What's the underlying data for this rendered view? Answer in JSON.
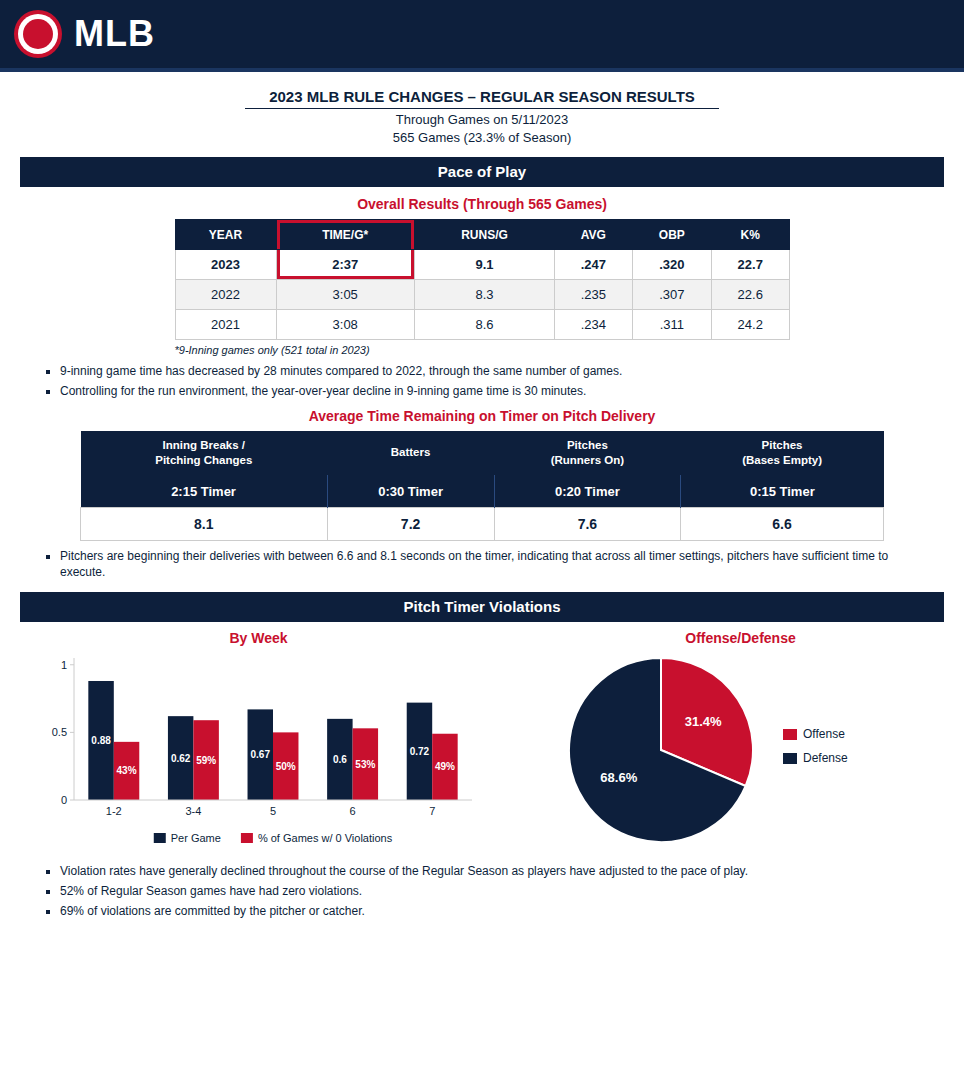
{
  "header": "MLB",
  "title": "2023 MLB RULE CHANGES – REGULAR SEASON RESULTS",
  "subtitle": [
    "Through Games on 5/11/2023",
    "565 Games (23.3% of Season)"
  ],
  "sections": [
    "Pace of Play",
    "Pitch Timer Violations"
  ],
  "tables": [
    {
      "title": "Overall Results (Through 565 Games)",
      "headers": [
        "YEAR",
        "TIME/G*",
        "RUNS/G",
        "AVG",
        "OBP",
        "K%"
      ],
      "rows": [
        [
          "2023",
          "2:37",
          "9.1",
          ".247",
          ".320",
          "22.7"
        ],
        [
          "2022",
          "3:05",
          "8.3",
          ".235",
          ".307",
          "22.6"
        ],
        [
          "2021",
          "3:08",
          "8.6",
          ".234",
          ".311",
          "24.2"
        ]
      ],
      "footnote": "*9-Inning games only (521 total in 2023)"
    },
    {
      "title": "Average Time Remaining on Timer on Pitch Delivery",
      "headers": [
        "Inning Breaks /\nPitching Changes",
        "Batters",
        "Pitches\n(Runners On)",
        "Pitches\n(Bases Empty)"
      ],
      "rows": [
        [
          "2:15 Timer",
          "0:30 Timer",
          "0:20 Timer",
          "0:15 Timer"
        ],
        [
          "8.1",
          "7.2",
          "7.6",
          "6.6"
        ]
      ]
    }
  ],
  "annotations": [
    [
      "9-inning game time has decreased by 28 minutes compared to 2022, through the same number of games.",
      "Controlling for the run environment, the year-over-year decline in 9-inning game time is 30 minutes."
    ],
    [
      "Pitchers are beginning their deliveries with between 6.6 and 8.1 seconds on the timer, indicating that across all timer settings, pitchers have sufficient time to execute."
    ],
    [
      "Violation rates have generally declined throughout the course of the Regular Season as players have adjusted to the pace of play.",
      "52% of Regular Season games have had zero violations.",
      "69% of violations are committed by the pitcher or catcher."
    ]
  ],
  "chart_data": [
    {
      "type": "bar",
      "title": "By Week",
      "categories": [
        "1-2",
        "3-4",
        "5",
        "6",
        "7"
      ],
      "series": [
        {
          "name": "Per Game",
          "color": "#0d1f3c",
          "values": [
            0.88,
            0.62,
            0.67,
            0.6,
            0.72
          ],
          "value_labels": [
            "0.88",
            "0.62",
            "0.67",
            "0.6",
            "0.72"
          ]
        },
        {
          "name": "% of Games w/ 0 Violations",
          "color": "#c8102e",
          "values": [
            0.43,
            0.59,
            0.5,
            0.53,
            0.49
          ],
          "value_labels": [
            "43%",
            "59%",
            "50%",
            "53%",
            "49%"
          ]
        }
      ],
      "ylim": [
        0,
        1.05
      ],
      "yticks": [
        0,
        0.5,
        1
      ],
      "grid": false,
      "legend": "bottom",
      "data_labels": true
    },
    {
      "type": "pie",
      "title": "Offense/Defense",
      "categories": [
        "Offense",
        "Defense"
      ],
      "values": [
        31.4,
        68.6
      ],
      "value_labels": [
        "31.4%",
        "68.6%"
      ],
      "colors": [
        "#c8102e",
        "#0d1f3c"
      ],
      "legend": "right",
      "data_labels": true
    }
  ]
}
